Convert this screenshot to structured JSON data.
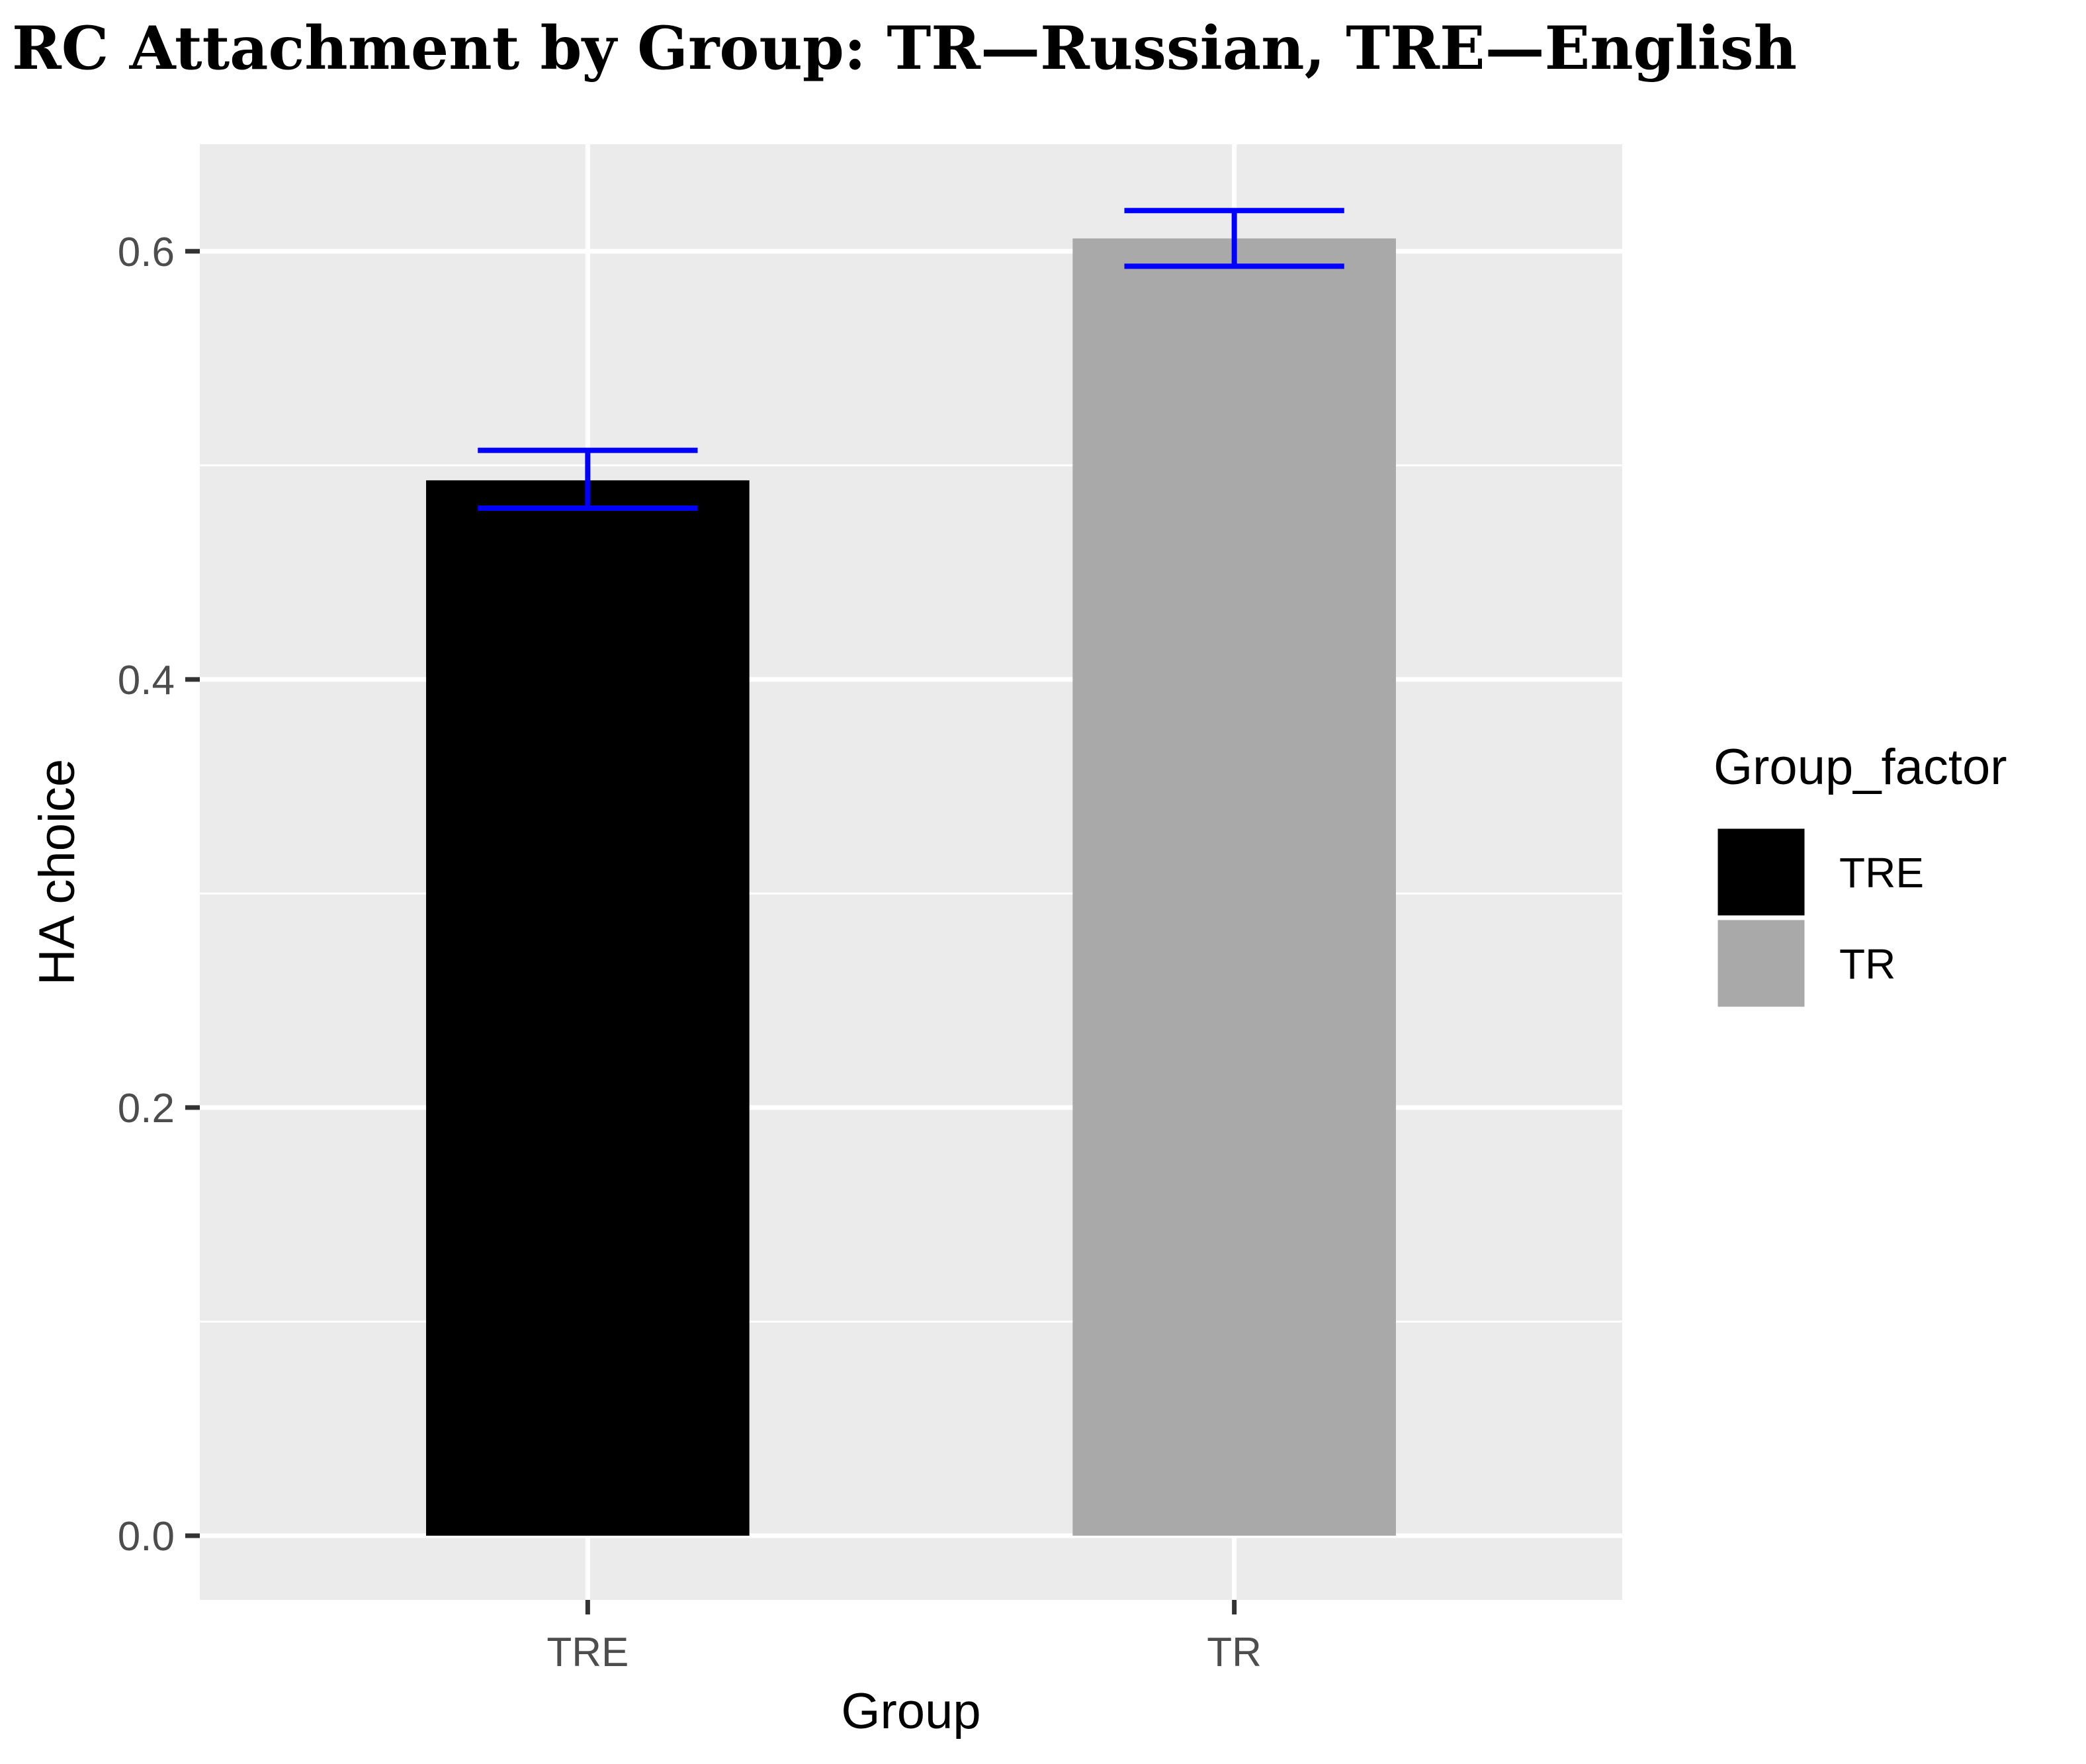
{
  "chart_data": {
    "type": "bar",
    "title": "RC Attachment by Group: TR—Russian, TRE—English",
    "xlabel": "Group",
    "ylabel": "HA choice",
    "categories": [
      "TRE",
      "TR"
    ],
    "values": [
      0.493,
      0.606
    ],
    "error_bars": {
      "lower": [
        0.48,
        0.593
      ],
      "upper": [
        0.507,
        0.619
      ],
      "color": "#0000ff"
    },
    "bar_colors": [
      "#000000",
      "#a9a9a9"
    ],
    "ylim": [
      -0.03,
      0.65
    ],
    "yticks": [
      0.0,
      0.2,
      0.4,
      0.6
    ],
    "ytick_labels": [
      "0.0",
      "0.2",
      "0.4",
      "0.6"
    ],
    "grid": true,
    "panel_background": "#ebebeb",
    "legend": {
      "title": "Group_factor",
      "placement": "right",
      "entries": [
        {
          "label": "TRE",
          "color": "#000000"
        },
        {
          "label": "TR",
          "color": "#a9a9a9"
        }
      ]
    }
  }
}
